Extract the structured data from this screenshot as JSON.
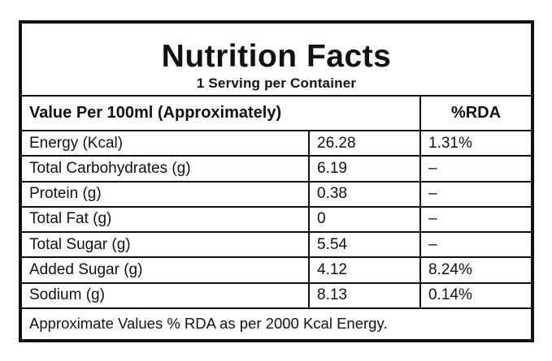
{
  "label": {
    "title": "Nutrition Facts",
    "subtitle": "1 Serving per Container",
    "header": {
      "col_main": "Value Per 100ml (Approximately)",
      "col_rda": "%RDA"
    },
    "rows": [
      {
        "name": "Energy (Kcal)",
        "value": "26.28",
        "rda": "1.31%"
      },
      {
        "name": "Total Carbohydrates (g)",
        "value": "6.19",
        "rda": "–"
      },
      {
        "name": "Protein (g)",
        "value": "0.38",
        "rda": "–"
      },
      {
        "name": "Total Fat (g)",
        "value": "0",
        "rda": "–"
      },
      {
        "name": "Total Sugar (g)",
        "value": "5.54",
        "rda": "–"
      },
      {
        "name": "Added Sugar (g)",
        "value": "4.12",
        "rda": "8.24%"
      },
      {
        "name": "Sodium (g)",
        "value": "8.13",
        "rda": "0.14%"
      }
    ],
    "footnote": "Approximate Values % RDA as per 2000 Kcal Energy.",
    "colors": {
      "border": "#111111",
      "text": "#111111",
      "background": "#ffffff"
    }
  }
}
